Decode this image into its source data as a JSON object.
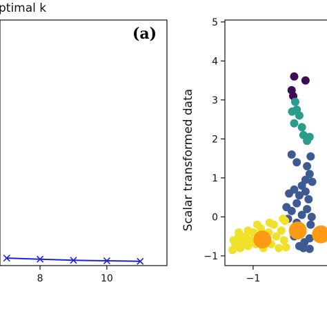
{
  "chart_data": [
    {
      "type": "line",
      "panel_label": "(a)",
      "title": "ptimal k",
      "xlabel": "",
      "ylabel": "",
      "xlim": [
        6.8,
        11.8
      ],
      "xticks": [
        8,
        10
      ],
      "series": [
        {
          "x": [
            7,
            8,
            9,
            10,
            11
          ],
          "y": [
            0.14,
            0.12,
            0.1,
            0.09,
            0.08
          ],
          "color": "#1f1fd6",
          "marker": "x"
        }
      ],
      "ylim": [
        0,
        4.6
      ],
      "grid": false
    },
    {
      "type": "scatter",
      "title": "",
      "ylabel": "Scalar transformed data",
      "xlabel": "",
      "xlim": [
        -1.55,
        0.6
      ],
      "ylim": [
        -1.25,
        5.05
      ],
      "xticks": [
        -1
      ],
      "yticks": [
        -1,
        0,
        1,
        2,
        3,
        4,
        5
      ],
      "clusters": [
        {
          "color": "#3d0b54",
          "points": [
            [
              -0.2,
              3.6
            ],
            [
              -0.25,
              3.25
            ],
            [
              -0.22,
              3.1
            ],
            [
              0.02,
              3.5
            ]
          ]
        },
        {
          "color": "#2a9c8c",
          "points": [
            [
              -0.18,
              2.95
            ],
            [
              -0.15,
              2.75
            ],
            [
              -0.24,
              2.7
            ],
            [
              -0.1,
              2.6
            ],
            [
              -0.2,
              2.4
            ],
            [
              -0.05,
              2.3
            ],
            [
              -0.02,
              2.1
            ],
            [
              0.05,
              1.95
            ],
            [
              0.1,
              2.05
            ]
          ]
        },
        {
          "color": "#3d5a93",
          "points": [
            [
              -0.25,
              1.6
            ],
            [
              -0.15,
              1.4
            ],
            [
              0.05,
              1.3
            ],
            [
              0.12,
              1.55
            ],
            [
              0.1,
              1.1
            ],
            [
              0.02,
              0.95
            ],
            [
              -0.05,
              0.8
            ],
            [
              -0.1,
              0.55
            ],
            [
              -0.2,
              0.7
            ],
            [
              -0.3,
              0.6
            ],
            [
              0.15,
              0.9
            ],
            [
              -0.35,
              0.25
            ],
            [
              -0.25,
              0.15
            ],
            [
              -0.15,
              0.35
            ],
            [
              0.08,
              0.45
            ],
            [
              0.05,
              0.2
            ],
            [
              -0.05,
              0.05
            ],
            [
              -0.15,
              -0.15
            ],
            [
              -0.05,
              -0.35
            ],
            [
              -0.2,
              -0.5
            ],
            [
              0.0,
              -0.65
            ],
            [
              -0.1,
              -0.75
            ],
            [
              0.1,
              -0.55
            ],
            [
              0.12,
              -0.2
            ],
            [
              -0.32,
              -0.05
            ],
            [
              0.02,
              0.65
            ],
            [
              0.14,
              0.0
            ],
            [
              -0.02,
              -0.8
            ],
            [
              0.1,
              -0.82
            ]
          ]
        },
        {
          "color": "#f0e12a",
          "points": [
            [
              -1.4,
              -0.85
            ],
            [
              -1.35,
              -0.7
            ],
            [
              -1.3,
              -0.55
            ],
            [
              -1.25,
              -0.8
            ],
            [
              -1.2,
              -0.65
            ],
            [
              -1.15,
              -0.5
            ],
            [
              -1.1,
              -0.75
            ],
            [
              -1.05,
              -0.6
            ],
            [
              -1.0,
              -0.4
            ],
            [
              -0.95,
              -0.7
            ],
            [
              -0.9,
              -0.5
            ],
            [
              -0.85,
              -0.3
            ],
            [
              -0.8,
              -0.8
            ],
            [
              -0.75,
              -0.6
            ],
            [
              -0.7,
              -0.4
            ],
            [
              -0.65,
              -0.7
            ],
            [
              -0.6,
              -0.2
            ],
            [
              -0.55,
              -0.5
            ],
            [
              -0.5,
              -0.8
            ],
            [
              -0.45,
              -0.35
            ],
            [
              -0.4,
              -0.6
            ],
            [
              -0.38,
              -0.1
            ],
            [
              -0.36,
              -0.78
            ],
            [
              -0.42,
              -0.05
            ],
            [
              -1.28,
              -0.4
            ],
            [
              -1.1,
              -0.35
            ],
            [
              -0.92,
              -0.2
            ],
            [
              -0.68,
              -0.15
            ],
            [
              -1.38,
              -0.6
            ]
          ]
        }
      ],
      "centroids": {
        "color": "#ff9a14",
        "points": [
          [
            -0.82,
            -0.58
          ],
          [
            -0.13,
            -0.35
          ],
          [
            0.32,
            -0.45
          ]
        ]
      }
    }
  ]
}
